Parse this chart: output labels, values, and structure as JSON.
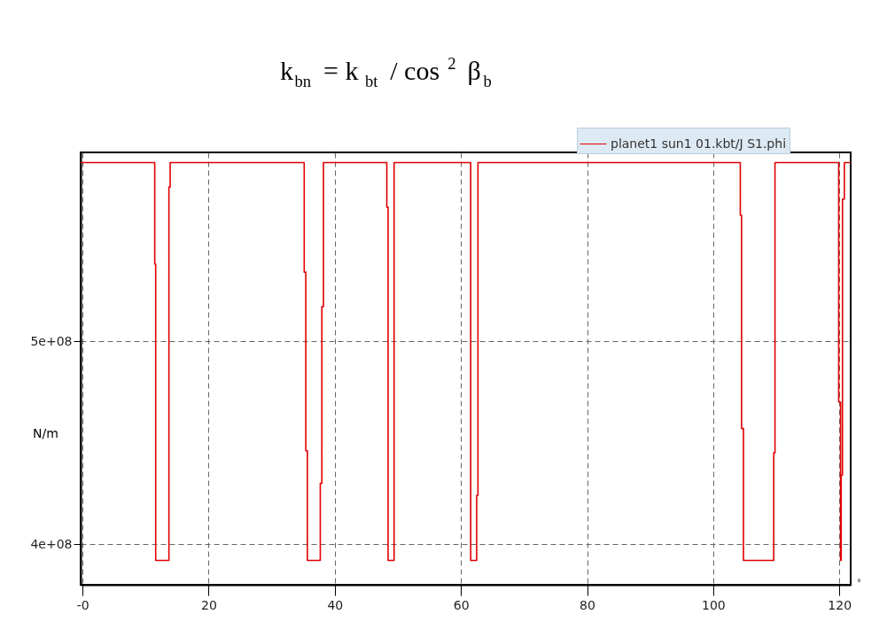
{
  "chart_data": {
    "type": "line",
    "title": "k$_{bn}$ = k$_{bt}$ / cos$^{2}$ β$_{b}$",
    "xlabel": "°",
    "ylabel": "N/m",
    "x": [
      -0.3,
      11.45,
      11.45,
      11.6,
      11.6,
      13.7,
      13.7,
      13.9,
      13.9,
      35.15,
      35.15,
      35.4,
      35.4,
      35.65,
      35.65,
      37.7,
      37.7,
      37.95,
      37.95,
      38.2,
      38.2,
      48.25,
      48.25,
      48.45,
      48.45,
      49.4,
      49.4,
      61.55,
      61.55,
      62.5,
      62.5,
      62.7,
      62.7,
      104.3,
      104.3,
      104.5,
      104.5,
      104.8,
      104.8,
      109.6,
      109.6,
      109.8,
      109.8,
      119.9,
      119.9,
      120.2,
      120.2,
      120.3,
      120.3,
      120.5,
      120.5,
      120.8,
      120.8,
      121.8
    ],
    "series": [
      {
        "name": "planet1 sun1 01.kbt/J S1.phi",
        "color": "#e00000",
        "values": [
          588000000,
          588000000,
          538000000,
          538000000,
          392000000,
          392000000,
          576000000,
          576000000,
          588000000,
          588000000,
          534000000,
          534000000,
          446000000,
          446000000,
          392000000,
          392000000,
          430000000,
          430000000,
          517000000,
          517000000,
          588000000,
          588000000,
          566000000,
          566000000,
          392000000,
          392000000,
          588000000,
          588000000,
          392000000,
          392000000,
          424000000,
          424000000,
          588000000,
          588000000,
          562000000,
          562000000,
          457000000,
          457000000,
          392000000,
          392000000,
          445000000,
          445000000,
          588000000,
          588000000,
          470000000,
          470000000,
          392000000,
          392000000,
          434000000,
          434000000,
          570000000,
          570000000,
          588000000,
          588000000
        ]
      }
    ],
    "xlim": [
      -0.3,
      121.8
    ],
    "ylim": [
      380000000,
      593000000
    ],
    "xticks": [
      {
        "value": 0,
        "label": "-0"
      },
      20,
      40,
      60,
      80,
      100,
      120
    ],
    "yticks": [
      {
        "value": 400000000,
        "label": "4e+08"
      },
      {
        "value": 500000000,
        "label": "5e+08"
      }
    ],
    "grid": true,
    "legend": "top right",
    "line_style": "solid",
    "marker": "none"
  }
}
